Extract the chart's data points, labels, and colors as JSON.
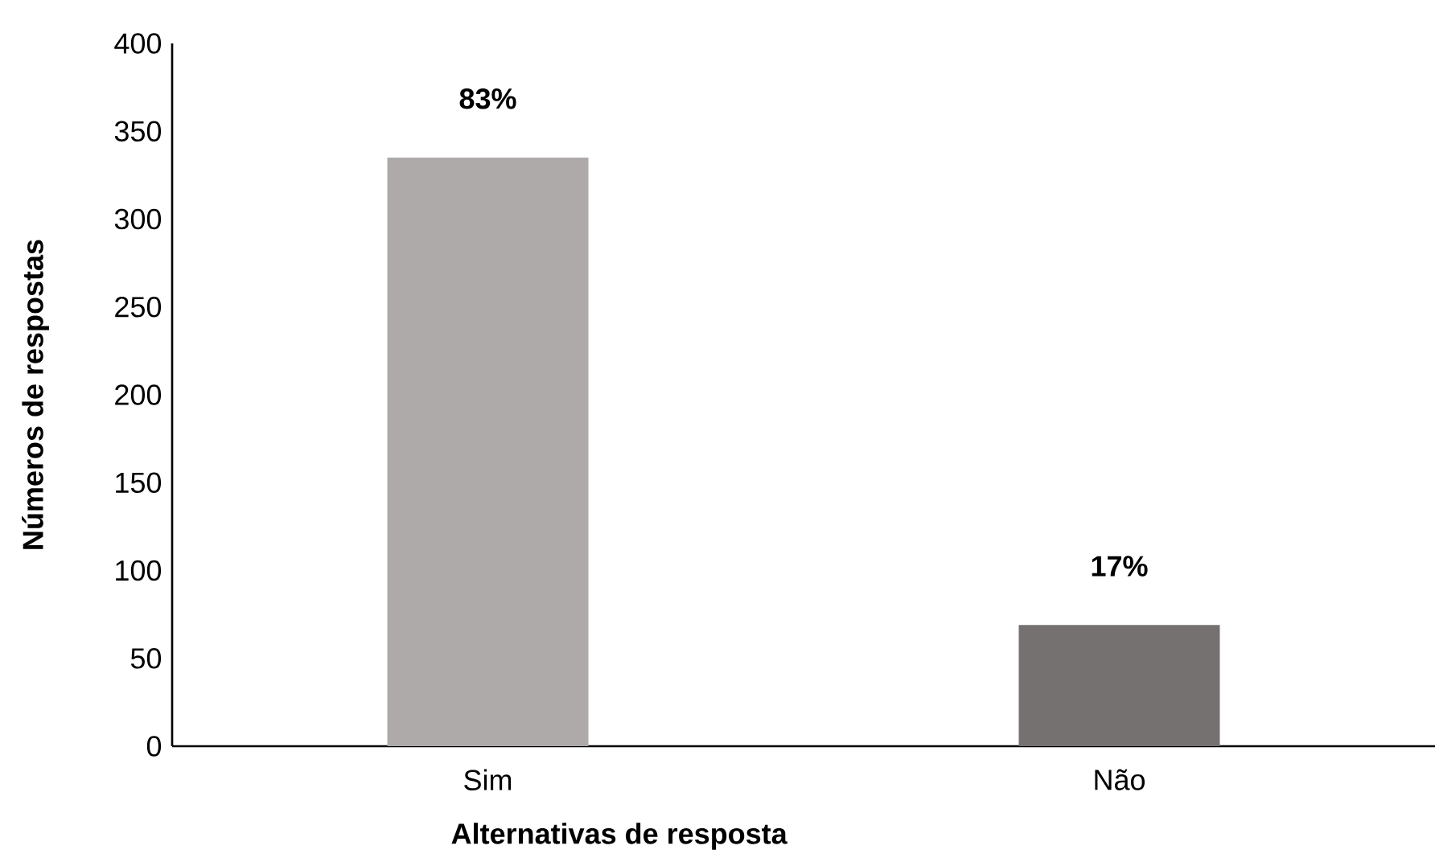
{
  "chart_data": {
    "type": "bar",
    "xlabel": "Alternativas de resposta",
    "ylabel": "Números de respostas",
    "categories": [
      "Sim",
      "Não"
    ],
    "values": [
      335,
      69
    ],
    "colors": [
      "#aeaaaa",
      "#757171"
    ],
    "annotations": [
      {
        "text": "83%",
        "x": "Sim",
        "y": 335
      },
      {
        "text": "17%",
        "x": "Não",
        "y": 69
      }
    ],
    "ylim": [
      0,
      400
    ],
    "yticks": [
      0,
      50,
      100,
      150,
      200,
      250,
      300,
      350,
      400
    ],
    "grid": false
  }
}
